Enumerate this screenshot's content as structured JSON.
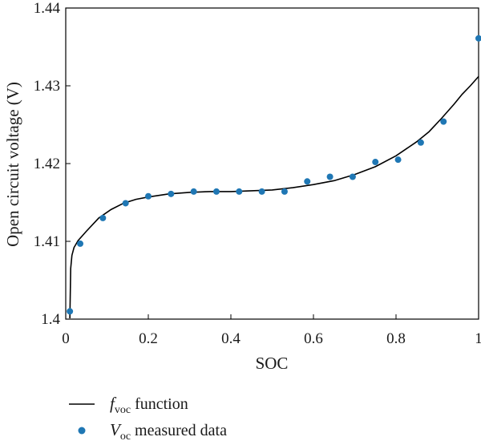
{
  "chart_data": {
    "type": "line",
    "title": "",
    "xlabel": "SOC",
    "ylabel": "Open circuit voltage (V)",
    "xlim": [
      0,
      1
    ],
    "ylim": [
      1.4,
      1.44
    ],
    "x_ticks": [
      "0",
      "0.2",
      "0.4",
      "0.6",
      "0.8",
      "1"
    ],
    "y_ticks": [
      "1.4",
      "1.41",
      "1.42",
      "1.43",
      "1.44"
    ],
    "grid": false,
    "legend_placement": "below",
    "colors": {
      "line": "#000000",
      "points": "#1f77b4"
    },
    "series": [
      {
        "name_main": "f",
        "name_sub": "voc",
        "name_rest": " function",
        "kind": "line",
        "x": [
          0.01,
          0.012,
          0.015,
          0.02,
          0.03,
          0.05,
          0.08,
          0.11,
          0.14,
          0.17,
          0.2,
          0.25,
          0.3,
          0.35,
          0.4,
          0.45,
          0.5,
          0.55,
          0.6,
          0.65,
          0.7,
          0.75,
          0.8,
          0.85,
          0.88,
          0.91,
          0.94,
          0.96,
          0.98,
          1.0
        ],
        "y": [
          1.4001,
          1.4065,
          1.4082,
          1.4092,
          1.4101,
          1.4113,
          1.413,
          1.4141,
          1.4149,
          1.4154,
          1.4157,
          1.4161,
          1.4163,
          1.4164,
          1.4164,
          1.4165,
          1.4166,
          1.4169,
          1.4173,
          1.4178,
          1.4186,
          1.4196,
          1.421,
          1.4228,
          1.4241,
          1.4258,
          1.4276,
          1.4289,
          1.43,
          1.4312
        ]
      },
      {
        "name_main": "V",
        "name_sub": "oc",
        "name_rest": " measured data",
        "kind": "scatter",
        "x": [
          0.01,
          0.035,
          0.09,
          0.145,
          0.2,
          0.255,
          0.31,
          0.365,
          0.42,
          0.475,
          0.53,
          0.585,
          0.64,
          0.695,
          0.75,
          0.805,
          0.86,
          0.915,
          1.0
        ],
        "y": [
          1.401,
          1.4097,
          1.413,
          1.4149,
          1.4158,
          1.4161,
          1.4164,
          1.4164,
          1.4164,
          1.4164,
          1.4164,
          1.4177,
          1.4183,
          1.4183,
          1.4202,
          1.4205,
          1.4227,
          1.4254,
          1.4361
        ]
      }
    ]
  }
}
